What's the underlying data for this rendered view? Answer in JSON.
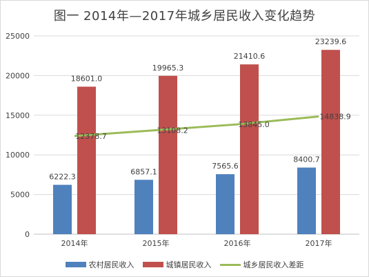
{
  "chart_data": {
    "type": "bar",
    "title": "图一     2014年—2017年城乡居民收入变化趋势",
    "categories": [
      "2014年",
      "2015年",
      "2016年",
      "2017年"
    ],
    "ylim": [
      0,
      25000
    ],
    "yticks": [
      "0",
      "5000",
      "10000",
      "15000",
      "20000",
      "25000"
    ],
    "grid": true,
    "legend_position": "bottom",
    "series": [
      {
        "name": "农村居民收入",
        "kind": "bar",
        "color": "#4f81bd",
        "values": [
          6222.3,
          6857.1,
          7565.6,
          8400.7
        ],
        "labels": [
          "6222.3",
          "6857.1",
          "7565.6",
          "8400.7"
        ]
      },
      {
        "name": "城镇居民收入",
        "kind": "bar",
        "color": "#c0504d",
        "values": [
          18601.0,
          19965.3,
          21410.6,
          23239.6
        ],
        "labels": [
          "18601.0",
          "19965.3",
          "21410.6",
          "23239.6"
        ]
      },
      {
        "name": "城乡居民收入差距",
        "kind": "line",
        "color": "#9bbb59",
        "values": [
          12378.7,
          13108.2,
          13845.0,
          14838.9
        ],
        "labels": [
          "12378.7",
          "13108.2",
          "13845.0",
          "14838.9"
        ]
      }
    ]
  }
}
